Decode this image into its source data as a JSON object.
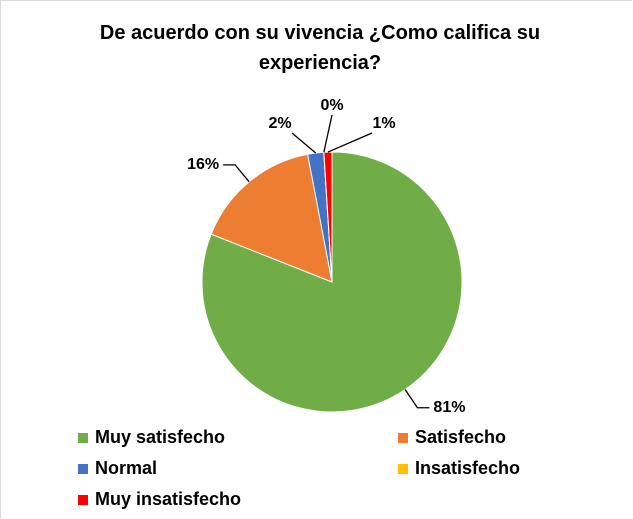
{
  "chart_data": {
    "type": "pie",
    "title": "De acuerdo con su vivencia ¿Como califica su experiencia?",
    "categories": [
      "Muy satisfecho",
      "Satisfecho",
      "Normal",
      "Insatisfecho",
      "Muy insatisfecho"
    ],
    "values": [
      81,
      16,
      2,
      0,
      1
    ],
    "value_labels": [
      "81%",
      "16%",
      "2%",
      "0%",
      "1%"
    ],
    "colors": [
      "#70ad47",
      "#ed7d31",
      "#4472c4",
      "#ffc000",
      "#ff0000"
    ],
    "legend": "bottom"
  }
}
